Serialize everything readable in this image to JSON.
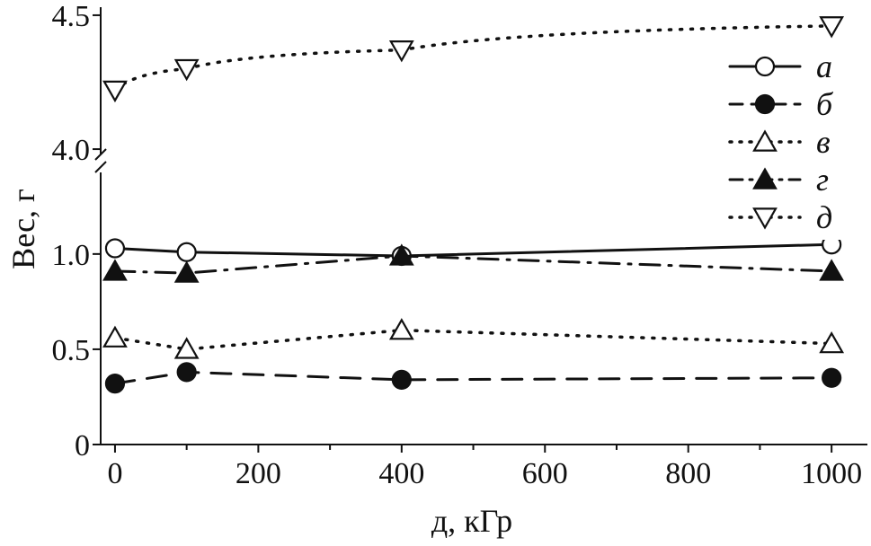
{
  "chart_data": {
    "type": "line",
    "xlabel": "д, кГр",
    "ylabel": "Вес, г",
    "x_ticks": [
      "0",
      "200",
      "400",
      "600",
      "800",
      "1000"
    ],
    "x_tick_values": [
      0,
      200,
      400,
      600,
      800,
      1000
    ],
    "y_ticks_lower": [
      "0",
      "0.5",
      "1.0"
    ],
    "y_tick_values_lower": [
      0,
      0.5,
      1.0
    ],
    "y_ticks_upper": [
      "4.0",
      "4.5"
    ],
    "y_tick_values_upper": [
      4.0,
      4.5
    ],
    "xlim": [
      -20,
      1050
    ],
    "ylim_lower": [
      0,
      1.4
    ],
    "ylim_upper": [
      3.96,
      4.53
    ],
    "axis_break": true,
    "grid": false,
    "legend_position": "top-right",
    "series": [
      {
        "name": "а",
        "marker": "circle-open",
        "line": "solid",
        "x": [
          0,
          100,
          400,
          1000
        ],
        "y": [
          1.03,
          1.01,
          0.99,
          1.05
        ],
        "panel": "lower"
      },
      {
        "name": "б",
        "marker": "circle-filled",
        "line": "dashed",
        "x": [
          0,
          100,
          400,
          1000
        ],
        "y": [
          0.32,
          0.38,
          0.34,
          0.35
        ],
        "panel": "lower"
      },
      {
        "name": "в",
        "marker": "triangle-up-open",
        "line": "dotted",
        "x": [
          0,
          100,
          400,
          1000
        ],
        "y": [
          0.56,
          0.5,
          0.6,
          0.53
        ],
        "panel": "lower"
      },
      {
        "name": "г",
        "marker": "triangle-up-filled",
        "line": "dashdot",
        "x": [
          0,
          100,
          400,
          1000
        ],
        "y": [
          0.91,
          0.9,
          0.99,
          0.91
        ],
        "panel": "lower"
      },
      {
        "name": "д",
        "marker": "triangle-down-open",
        "line": "dotted",
        "x": [
          0,
          100,
          400,
          1000
        ],
        "y": [
          4.22,
          4.3,
          4.37,
          4.46
        ],
        "panel": "upper"
      }
    ]
  }
}
